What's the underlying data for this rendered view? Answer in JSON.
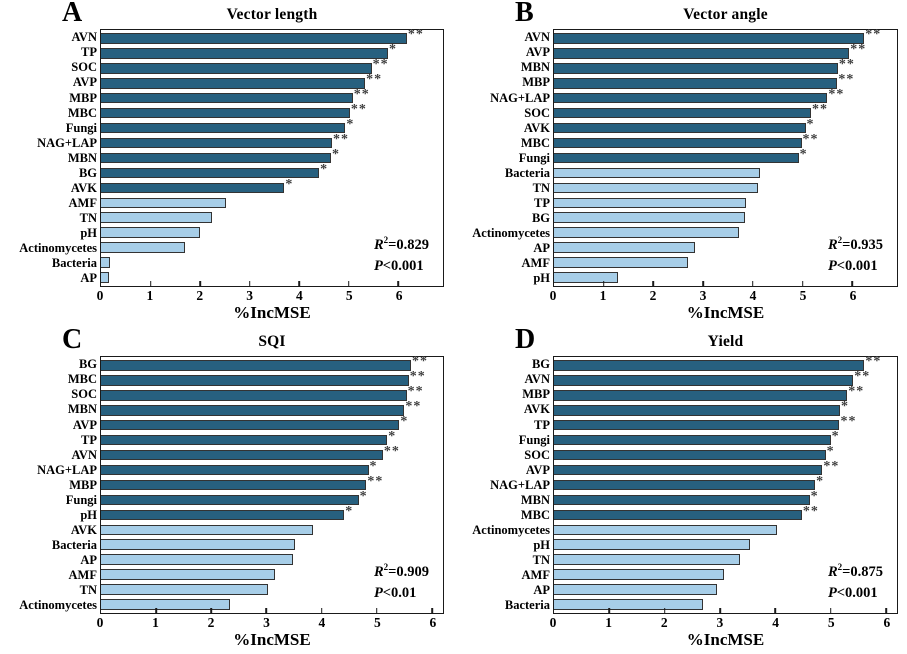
{
  "colors": {
    "significant_bar": "#27607F",
    "nonsignificant_bar": "#A7CEE8",
    "bar_border": "#333333",
    "axis": "#1A1A1A",
    "star": "#3D3D3D"
  },
  "chart_data": [
    {
      "type": "bar",
      "orientation": "horizontal",
      "panel_letter": "A",
      "title": "Vector length",
      "xlabel": "%IncMSE",
      "xlim": [
        0,
        6.9
      ],
      "xticks": [
        0,
        1,
        2,
        3,
        4,
        5,
        6
      ],
      "categories": [
        "AVN",
        "TP",
        "SOC",
        "AVP",
        "MBP",
        "MBC",
        "Fungi",
        "NAG+LAP",
        "MBN",
        "BG",
        "AVK",
        "AMF",
        "TN",
        "pH",
        "Actinomycetes",
        "Bacteria",
        "AP"
      ],
      "values": [
        6.17,
        5.79,
        5.46,
        5.33,
        5.08,
        5.02,
        4.93,
        4.66,
        4.64,
        4.4,
        3.7,
        2.52,
        2.24,
        1.99,
        1.7,
        0.18,
        0.17
      ],
      "significance": [
        "**",
        "*",
        "**",
        "**",
        "**",
        "**",
        "*",
        "**",
        "*",
        "*",
        "*",
        "",
        "",
        "",
        "",
        "",
        ""
      ],
      "stats": {
        "r_label": "R",
        "r_sup": "2",
        "r_value": "=0.829",
        "p_label": "P",
        "p_value": "<0.001"
      }
    },
    {
      "type": "bar",
      "orientation": "horizontal",
      "panel_letter": "B",
      "title": "Vector angle",
      "xlabel": "%IncMSE",
      "xlim": [
        0,
        6.9
      ],
      "xticks": [
        0,
        1,
        2,
        3,
        4,
        5,
        6
      ],
      "categories": [
        "AVN",
        "AVP",
        "MBN",
        "MBP",
        "NAG+LAP",
        "SOC",
        "AVK",
        "MBC",
        "Fungi",
        "Bacteria",
        "TN",
        "TP",
        "BG",
        "Actinomycetes",
        "AP",
        "AMF",
        "pH"
      ],
      "values": [
        6.24,
        5.94,
        5.71,
        5.7,
        5.5,
        5.17,
        5.06,
        4.98,
        4.92,
        4.15,
        4.1,
        3.86,
        3.84,
        3.72,
        2.84,
        2.69,
        1.28
      ],
      "significance": [
        "**",
        "**",
        "**",
        "**",
        "**",
        "**",
        "*",
        "**",
        "*",
        "",
        "",
        "",
        "",
        "",
        "",
        "",
        ""
      ],
      "stats": {
        "r_label": "R",
        "r_sup": "2",
        "r_value": "=0.935",
        "p_label": "P",
        "p_value": "<0.001"
      }
    },
    {
      "type": "bar",
      "orientation": "horizontal",
      "panel_letter": "C",
      "title": "SQI",
      "xlabel": "%IncMSE",
      "xlim": [
        0,
        6.2
      ],
      "xticks": [
        0,
        1,
        2,
        3,
        4,
        5,
        6
      ],
      "categories": [
        "BG",
        "MBC",
        "SOC",
        "MBN",
        "AVP",
        "TP",
        "AVN",
        "NAG+LAP",
        "MBP",
        "Fungi",
        "pH",
        "AVK",
        "Bacteria",
        "AP",
        "AMF",
        "TN",
        "Actinomycetes"
      ],
      "values": [
        5.62,
        5.58,
        5.54,
        5.5,
        5.41,
        5.19,
        5.11,
        4.85,
        4.81,
        4.67,
        4.41,
        3.85,
        3.52,
        3.48,
        3.15,
        3.02,
        2.34
      ],
      "significance": [
        "**",
        "**",
        "**",
        "**",
        "*",
        "*",
        "**",
        "*",
        "**",
        "*",
        "*",
        "",
        "",
        "",
        "",
        "",
        ""
      ],
      "stats": {
        "r_label": "R",
        "r_sup": "2",
        "r_value": "=0.909",
        "p_label": "P",
        "p_value": "<0.01"
      }
    },
    {
      "type": "bar",
      "orientation": "horizontal",
      "panel_letter": "D",
      "title": "Yield",
      "xlabel": "%IncMSE",
      "xlim": [
        0,
        6.2
      ],
      "xticks": [
        0,
        1,
        2,
        3,
        4,
        5,
        6
      ],
      "categories": [
        "BG",
        "AVN",
        "MBP",
        "AVK",
        "TP",
        "Fungi",
        "SOC",
        "AVP",
        "NAG+LAP",
        "MBN",
        "MBC",
        "Actinomycetes",
        "pH",
        "TN",
        "AMF",
        "AP",
        "Bacteria"
      ],
      "values": [
        5.61,
        5.41,
        5.3,
        5.17,
        5.16,
        5.0,
        4.91,
        4.85,
        4.72,
        4.62,
        4.48,
        4.03,
        3.55,
        3.36,
        3.08,
        2.94,
        2.7
      ],
      "significance": [
        "**",
        "**",
        "**",
        "*",
        "**",
        "*",
        "*",
        "**",
        "*",
        "*",
        "**",
        "",
        "",
        "",
        "",
        "",
        ""
      ],
      "stats": {
        "r_label": "R",
        "r_sup": "2",
        "r_value": "=0.875",
        "p_label": "P",
        "p_value": "<0.001"
      }
    }
  ]
}
